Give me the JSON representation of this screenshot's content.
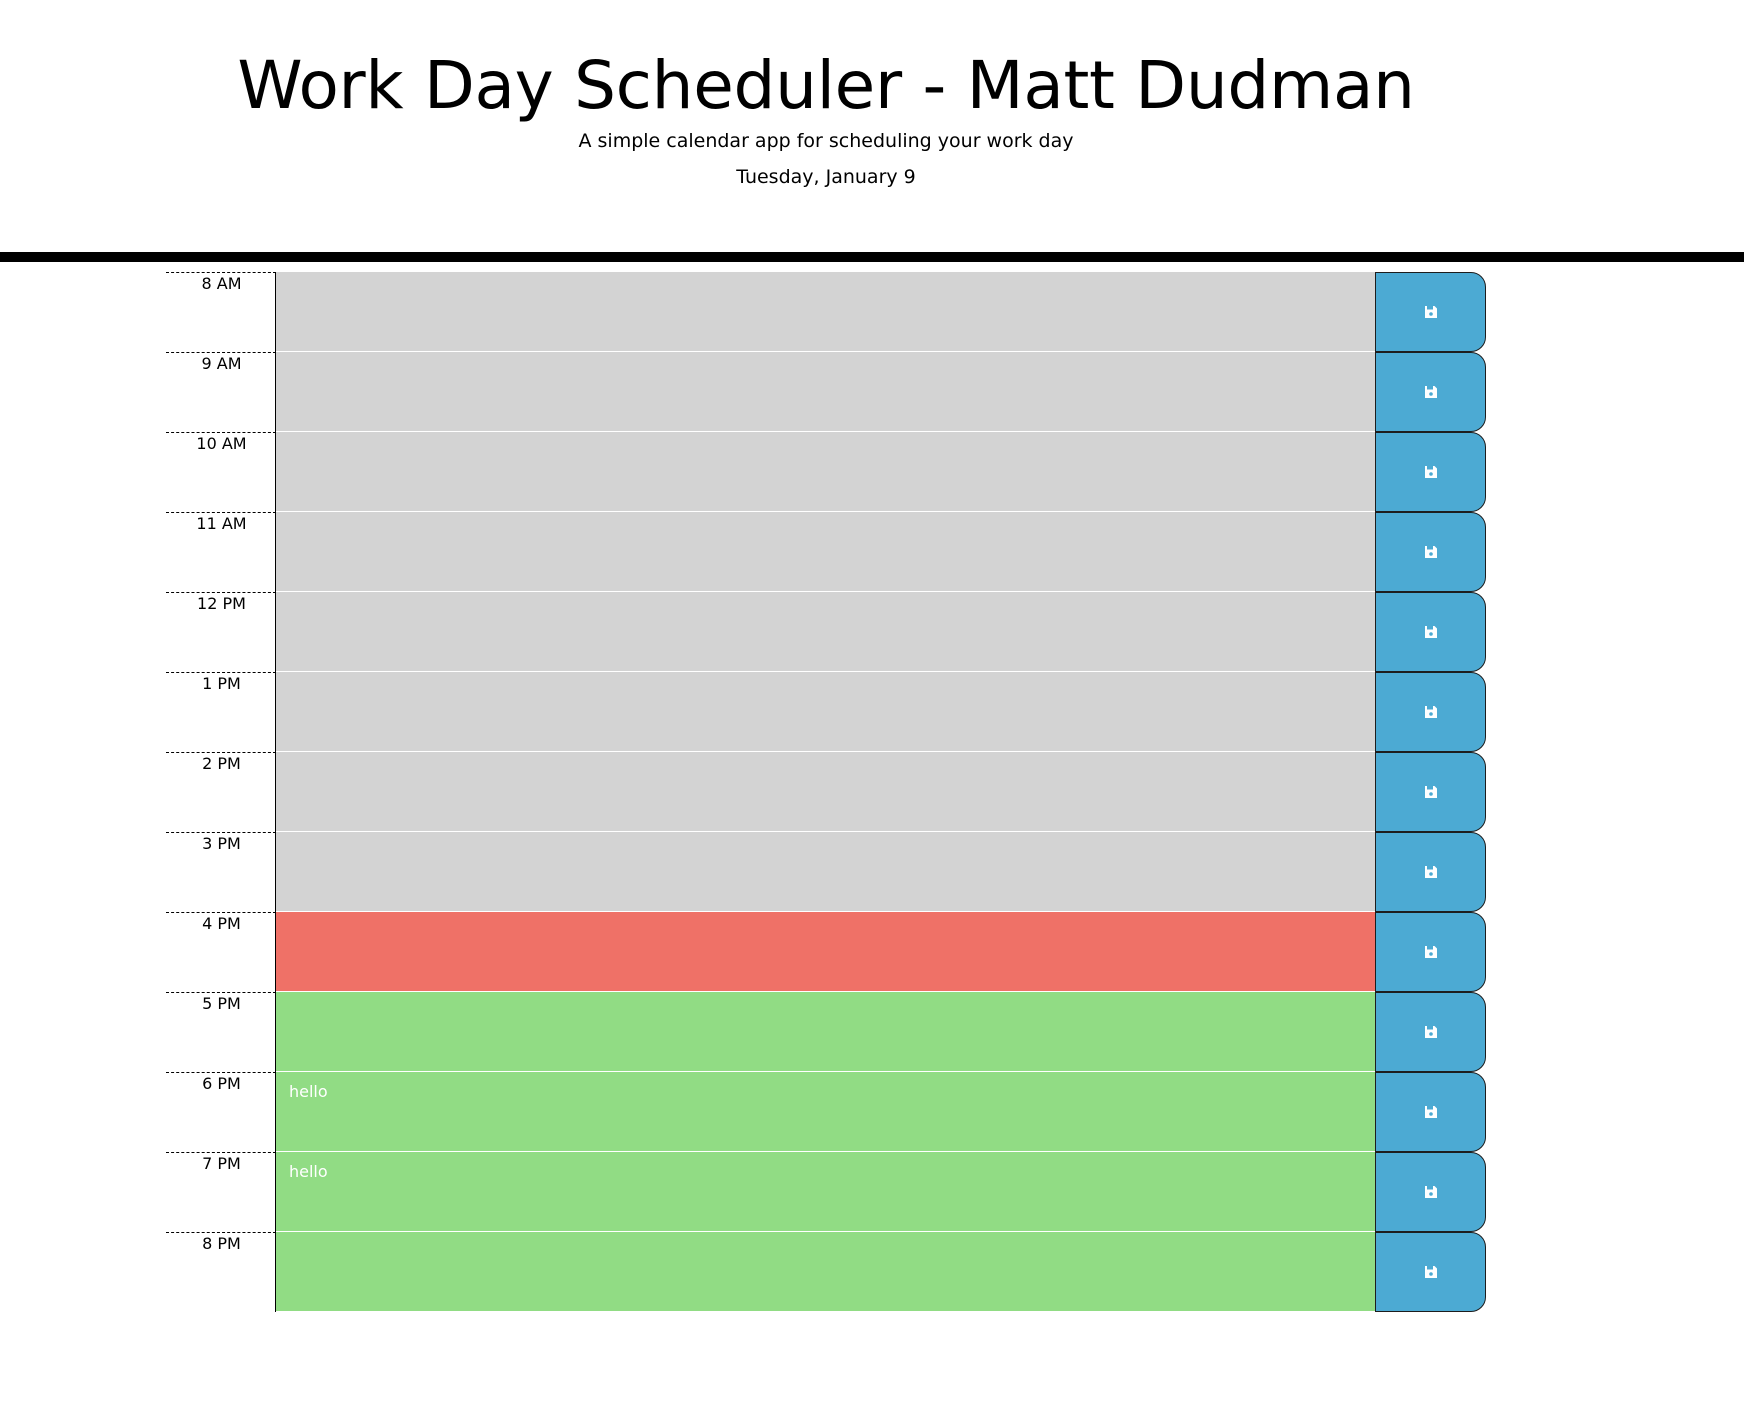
{
  "header": {
    "title": "Work Day Scheduler - Matt Dudman",
    "subtitle": "A simple calendar app for scheduling your work day",
    "date": "Tuesday, January 9"
  },
  "colors": {
    "past": "#d3d3d3",
    "present": "#ef7167",
    "future": "#91dc84",
    "save_button": "#4caad3"
  },
  "save_icon": "floppy-disk-icon",
  "time_blocks": [
    {
      "hour": "8 AM",
      "status": "past",
      "text": ""
    },
    {
      "hour": "9 AM",
      "status": "past",
      "text": ""
    },
    {
      "hour": "10 AM",
      "status": "past",
      "text": ""
    },
    {
      "hour": "11 AM",
      "status": "past",
      "text": ""
    },
    {
      "hour": "12 PM",
      "status": "past",
      "text": ""
    },
    {
      "hour": "1 PM",
      "status": "past",
      "text": ""
    },
    {
      "hour": "2 PM",
      "status": "past",
      "text": ""
    },
    {
      "hour": "3 PM",
      "status": "past",
      "text": ""
    },
    {
      "hour": "4 PM",
      "status": "present",
      "text": ""
    },
    {
      "hour": "5 PM",
      "status": "future",
      "text": ""
    },
    {
      "hour": "6 PM",
      "status": "future",
      "text": "hello"
    },
    {
      "hour": "7 PM",
      "status": "future",
      "text": "hello"
    },
    {
      "hour": "8 PM",
      "status": "future",
      "text": ""
    }
  ]
}
